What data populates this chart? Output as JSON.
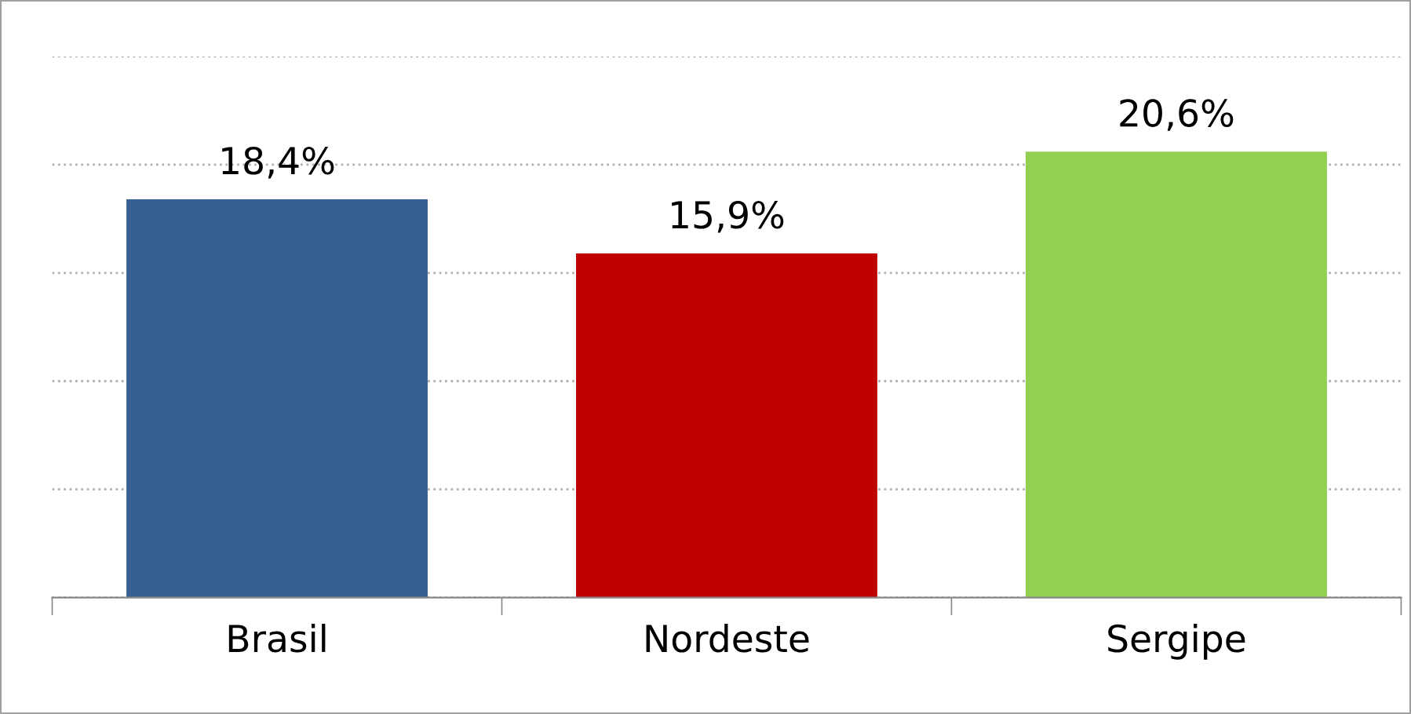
{
  "chart_data": {
    "type": "bar",
    "categories": [
      "Brasil",
      "Nordeste",
      "Sergipe"
    ],
    "values": [
      18.4,
      15.9,
      20.6
    ],
    "colors": [
      "#376092",
      "#c00000",
      "#92d050"
    ],
    "value_labels": [
      "18,4%",
      "15,9%",
      "20,6%"
    ],
    "ylim": [
      0,
      25
    ],
    "yticks": [
      {
        "value": 0,
        "label": null
      },
      {
        "value": 5,
        "label": null
      },
      {
        "value": 10,
        "label": null
      },
      {
        "value": 15,
        "label": null
      },
      {
        "value": 20,
        "label": null
      },
      {
        "value": 25,
        "label": null
      }
    ],
    "grid": "y",
    "tick_labels": "x",
    "legend": false
  }
}
